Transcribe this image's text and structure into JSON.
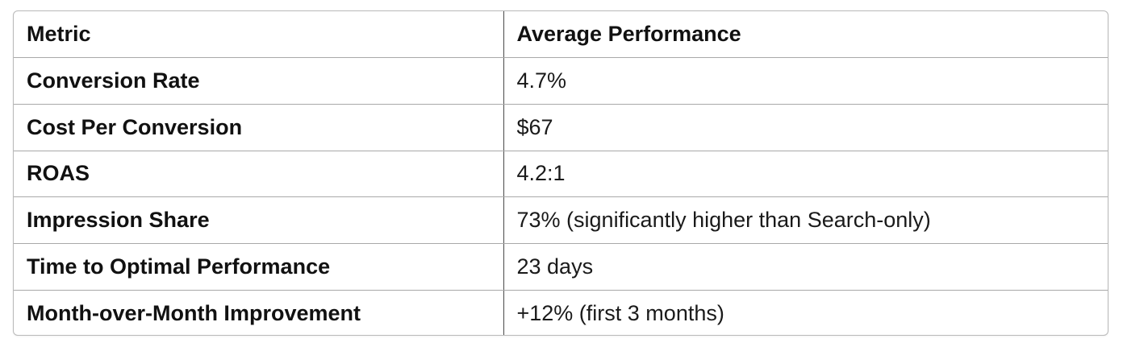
{
  "table": {
    "headers": [
      "Metric",
      "Average Performance"
    ],
    "rows": [
      {
        "metric": "Conversion Rate",
        "value": "4.7%"
      },
      {
        "metric": "Cost Per Conversion",
        "value": "$67"
      },
      {
        "metric": "ROAS",
        "value": "4.2:1"
      },
      {
        "metric": "Impression Share",
        "value": "73% (significantly higher than Search-only)"
      },
      {
        "metric": "Time to Optimal Performance",
        "value": "23 days"
      },
      {
        "metric": "Month-over-Month Improvement",
        "value": "+12% (first 3 months)"
      }
    ]
  }
}
